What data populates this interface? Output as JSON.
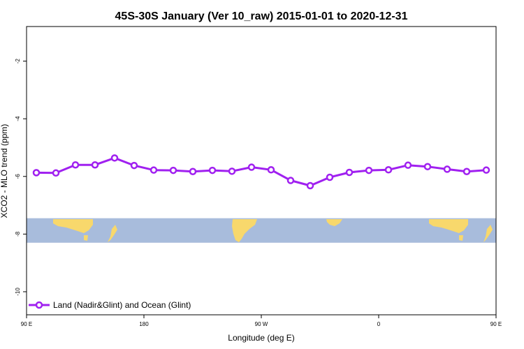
{
  "chart_data": {
    "type": "line",
    "title": "45S-30S January (Ver 10_raw)   2015-01-01 to 2020-12-31",
    "xlabel": "Longitude (deg E)",
    "ylabel": "XCO2 - MLO trend (ppm)",
    "xlim": [
      90,
      450
    ],
    "ylim": [
      -10.8,
      -0.8
    ],
    "x_ticks": [
      {
        "value": 90,
        "label": "90 E"
      },
      {
        "value": 180,
        "label": "180"
      },
      {
        "value": 270,
        "label": "90 W"
      },
      {
        "value": 360,
        "label": "0"
      },
      {
        "value": 450,
        "label": "90 E"
      }
    ],
    "y_ticks": [
      {
        "value": -2,
        "label": "-2"
      },
      {
        "value": -4,
        "label": "-4"
      },
      {
        "value": -6,
        "label": "-6"
      },
      {
        "value": -8,
        "label": "-8"
      },
      {
        "value": -10,
        "label": "-10"
      }
    ],
    "grid": false,
    "legend_position": "bottom-left",
    "series": [
      {
        "name": "Land (Nadir&Glint) and Ocean (Glint)",
        "color": "#A020F0",
        "x": [
          97.5,
          112.5,
          127.5,
          142.5,
          157.5,
          172.5,
          187.5,
          202.5,
          217.5,
          232.5,
          247.5,
          262.5,
          277.5,
          292.5,
          307.5,
          322.5,
          337.5,
          352.5,
          367.5,
          382.5,
          397.5,
          412.5,
          427.5,
          442.5
        ],
        "values": [
          -5.87,
          -5.88,
          -5.6,
          -5.6,
          -5.36,
          -5.62,
          -5.78,
          -5.79,
          -5.83,
          -5.79,
          -5.82,
          -5.68,
          -5.77,
          -6.14,
          -6.32,
          -6.03,
          -5.86,
          -5.79,
          -5.77,
          -5.61,
          -5.66,
          -5.75,
          -5.83,
          -5.78
        ]
      }
    ]
  },
  "map_strip": {
    "ocean_color": "#A8BCDC",
    "land_color": "#F8D86C",
    "yrange": [
      -8.3,
      -7.45
    ]
  }
}
